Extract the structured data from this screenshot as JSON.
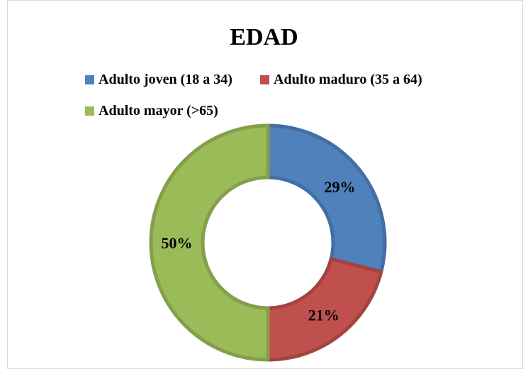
{
  "chart_data": {
    "type": "pie",
    "variant": "donut",
    "title": "EDAD",
    "legend_position": "top",
    "slices": [
      {
        "name": "Adulto joven (18 a 34)",
        "value": 29,
        "label": "29%",
        "color": "#4f81bd"
      },
      {
        "name": "Adulto maduro (35 a 64)",
        "value": 21,
        "label": "21%",
        "color": "#c0504d"
      },
      {
        "name": "Adulto mayor (>65)",
        "value": 50,
        "label": "50%",
        "color": "#9bbb59"
      }
    ]
  }
}
